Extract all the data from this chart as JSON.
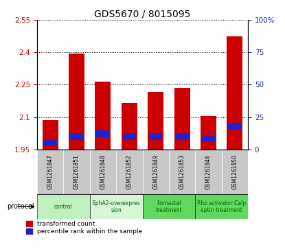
{
  "title": "GDS5670 / 8015095",
  "samples": [
    "GSM1261847",
    "GSM1261851",
    "GSM1261848",
    "GSM1261852",
    "GSM1261849",
    "GSM1261853",
    "GSM1261846",
    "GSM1261850"
  ],
  "red_values": [
    2.085,
    2.395,
    2.265,
    2.165,
    2.215,
    2.235,
    2.105,
    2.475
  ],
  "blue_values_pct": [
    5,
    10,
    12,
    10,
    10,
    10,
    8,
    18
  ],
  "ylim_left": [
    1.95,
    2.55
  ],
  "yticks_left": [
    1.95,
    2.1,
    2.25,
    2.4,
    2.55
  ],
  "ytick_labels_left": [
    "1.95",
    "2.1",
    "2.25",
    "2.4",
    "2.55"
  ],
  "ylim_right": [
    0,
    100
  ],
  "yticks_right": [
    0,
    25,
    50,
    75,
    100
  ],
  "ytick_labels_right": [
    "0",
    "25",
    "50",
    "75",
    "100%"
  ],
  "protocols": [
    {
      "label": "control",
      "start": 0,
      "end": 2,
      "color": "#c0f0c0",
      "text_color": "#006600"
    },
    {
      "label": "EphA2-overexpres\nsion",
      "start": 2,
      "end": 4,
      "color": "#d8f5d8",
      "text_color": "#006600"
    },
    {
      "label": "Ilomastat\ntreatment",
      "start": 4,
      "end": 6,
      "color": "#60d860",
      "text_color": "#006600"
    },
    {
      "label": "Rho activator Calp\neptin treatment",
      "start": 6,
      "end": 8,
      "color": "#60d860",
      "text_color": "#006600"
    }
  ],
  "bar_color_red": "#cc0000",
  "bar_color_blue": "#2222cc",
  "base_value": 1.95,
  "bar_width": 0.6,
  "legend_red": "transformed count",
  "legend_blue": "percentile rank within the sample",
  "protocol_label": "protocol",
  "title_fontsize": 10,
  "tick_label_color_left": "#cc0000",
  "tick_label_color_right": "#2222cc",
  "sample_bg_color": "#c8c8c8",
  "grid_linestyle": ":"
}
